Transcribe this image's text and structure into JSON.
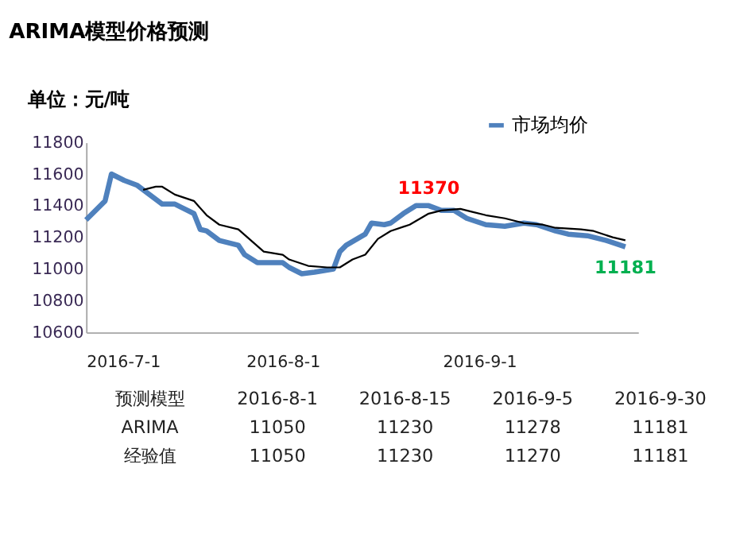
{
  "chart_data": [
    {
      "type": "line",
      "title": "ARIMA模型价格预测",
      "ylabel": "单位：元/吨",
      "legend": "top right",
      "grid": false,
      "line_style": "solid",
      "marker": "none",
      "xlim": [
        "2016-07-01",
        "2016-09-26"
      ],
      "xticks": [
        {
          "value": "2016-07-01",
          "label": "2016-7-1"
        },
        {
          "value": "2016-08-01",
          "label": "2016-8-1"
        },
        {
          "value": "2016-09-01",
          "label": "2016-9-1"
        }
      ],
      "ylim": [
        10600,
        11800
      ],
      "yticks": [
        10600,
        10800,
        11000,
        11200,
        11400,
        11600,
        11800
      ],
      "series": [
        {
          "name": "市场均价",
          "color": "#4f81bd",
          "x": [
            "2016-07-01",
            "2016-07-04",
            "2016-07-05",
            "2016-07-07",
            "2016-07-09",
            "2016-07-11",
            "2016-07-13",
            "2016-07-15",
            "2016-07-16",
            "2016-07-18",
            "2016-07-19",
            "2016-07-20",
            "2016-07-22",
            "2016-07-25",
            "2016-07-26",
            "2016-07-28",
            "2016-08-01",
            "2016-08-02",
            "2016-08-04",
            "2016-08-06",
            "2016-08-09",
            "2016-08-10",
            "2016-08-11",
            "2016-08-14",
            "2016-08-15",
            "2016-08-17",
            "2016-08-18",
            "2016-08-20",
            "2016-08-22",
            "2016-08-24",
            "2016-08-26",
            "2016-08-28",
            "2016-08-30",
            "2016-09-02",
            "2016-09-05",
            "2016-09-08",
            "2016-09-10",
            "2016-09-13",
            "2016-09-15",
            "2016-09-18",
            "2016-09-21",
            "2016-09-24"
          ],
          "values": [
            11310,
            11430,
            11600,
            11560,
            11530,
            11470,
            11410,
            11410,
            11390,
            11350,
            11250,
            11240,
            11180,
            11150,
            11090,
            11040,
            11040,
            11010,
            10970,
            10980,
            11000,
            11110,
            11150,
            11220,
            11290,
            11280,
            11290,
            11350,
            11400,
            11400,
            11370,
            11370,
            11320,
            11280,
            11270,
            11290,
            11280,
            11240,
            11220,
            11210,
            11180,
            11140
          ]
        },
        {
          "color": "#000000",
          "x": [
            "2016-07-10",
            "2016-07-12",
            "2016-07-13",
            "2016-07-15",
            "2016-07-18",
            "2016-07-20",
            "2016-07-22",
            "2016-07-25",
            "2016-07-27",
            "2016-07-29",
            "2016-08-01",
            "2016-08-02",
            "2016-08-05",
            "2016-08-08",
            "2016-08-10",
            "2016-08-12",
            "2016-08-14",
            "2016-08-16",
            "2016-08-18",
            "2016-08-21",
            "2016-08-24",
            "2016-08-26",
            "2016-08-29",
            "2016-08-31",
            "2016-09-02",
            "2016-09-05",
            "2016-09-08",
            "2016-09-11",
            "2016-09-13",
            "2016-09-17",
            "2016-09-19",
            "2016-09-22",
            "2016-09-24"
          ],
          "values": [
            11500,
            11520,
            11520,
            11470,
            11430,
            11340,
            11280,
            11250,
            11180,
            11110,
            11090,
            11060,
            11020,
            11010,
            11010,
            11060,
            11090,
            11190,
            11240,
            11280,
            11350,
            11370,
            11380,
            11360,
            11340,
            11320,
            11290,
            11280,
            11260,
            11250,
            11240,
            11200,
            11181
          ]
        }
      ],
      "annotations": [
        {
          "text": "11370",
          "x": "2016-08-24",
          "y": 11400
        },
        {
          "text": "11181",
          "x": "2016-09-24",
          "y": 11140
        }
      ]
    },
    {
      "type": "other",
      "ylabel": "预测模型",
      "categories": [
        "2016-8-1",
        "2016-8-15",
        "2016-9-5",
        "2016-9-30"
      ],
      "y_categories": [
        "ARIMA",
        "经验值"
      ],
      "cell_labels": [
        [
          "11050",
          "11230",
          "11278",
          "11181"
        ],
        [
          "11050",
          "11230",
          "11270",
          "11181"
        ]
      ]
    }
  ]
}
